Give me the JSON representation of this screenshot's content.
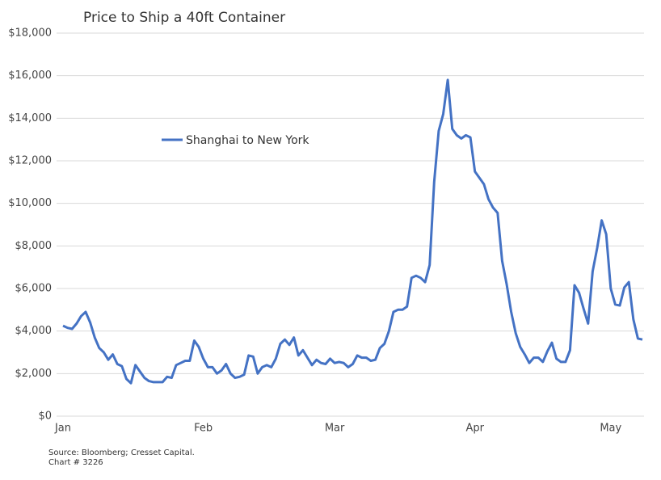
{
  "chart_data": {
    "type": "line",
    "title": "Price to Ship a 40ft Container",
    "source": "Source: Bloomberg; Cresset Capital.",
    "chart_number": "Chart # 3226",
    "categories": [
      "Jan",
      null,
      null,
      null,
      null,
      null,
      null,
      null,
      null,
      null,
      null,
      null,
      null,
      null,
      null,
      null,
      null,
      null,
      null,
      null,
      null,
      null,
      null,
      null,
      null,
      null,
      null,
      null,
      null,
      null,
      null,
      "Feb",
      null,
      null,
      null,
      null,
      null,
      null,
      null,
      null,
      null,
      null,
      null,
      null,
      null,
      null,
      null,
      null,
      null,
      null,
      null,
      null,
      null,
      null,
      null,
      null,
      null,
      null,
      null,
      null,
      "Mar",
      null,
      null,
      null,
      null,
      null,
      null,
      null,
      null,
      null,
      null,
      null,
      null,
      null,
      null,
      null,
      null,
      null,
      null,
      null,
      null,
      null,
      null,
      null,
      null,
      null,
      null,
      null,
      null,
      null,
      null,
      "Apr",
      null,
      null,
      null,
      null,
      null,
      null,
      null,
      null,
      null,
      null,
      null,
      null,
      null,
      null,
      null,
      null,
      null,
      null,
      null,
      null,
      null,
      null,
      null,
      null,
      null,
      null,
      null,
      null,
      null,
      "May",
      null,
      null,
      null,
      null,
      null,
      null,
      null
    ],
    "series": [
      {
        "name": "Shanghai to New York",
        "color": "#4472c4",
        "values": [
          4250,
          4150,
          4100,
          4350,
          4700,
          4900,
          4400,
          3700,
          3200,
          3000,
          2650,
          2900,
          2450,
          2350,
          1750,
          1550,
          2400,
          2100,
          1800,
          1650,
          1600,
          1600,
          1600,
          1850,
          1800,
          2400,
          2500,
          2600,
          2600,
          3550,
          3250,
          2700,
          2300,
          2300,
          2000,
          2150,
          2450,
          2000,
          1800,
          1850,
          1950,
          2850,
          2800,
          2000,
          2300,
          2400,
          2300,
          2700,
          3400,
          3600,
          3350,
          3700,
          2850,
          3100,
          2750,
          2400,
          2650,
          2500,
          2450,
          2700,
          2500,
          2550,
          2500,
          2300,
          2450,
          2850,
          2750,
          2750,
          2600,
          2650,
          3200,
          3400,
          4000,
          4900,
          5000,
          5000,
          5150,
          6500,
          6600,
          6500,
          6300,
          7100,
          11000,
          13400,
          14200,
          15800,
          13500,
          13200,
          13050,
          13200,
          13100,
          11500,
          11200,
          10900,
          10200,
          9800,
          9550,
          7300,
          6200,
          4900,
          3900,
          3250,
          2900,
          2500,
          2750,
          2750,
          2550,
          3050,
          3450,
          2700,
          2550,
          2550,
          3100,
          6150,
          5800,
          5050,
          4350,
          6800,
          7900,
          9200,
          8550,
          6000,
          5250,
          5200,
          6050,
          6300,
          4550,
          3650,
          3600
        ]
      }
    ],
    "ylim": [
      0,
      18000
    ],
    "yticks": [
      {
        "value": 0,
        "label": "$0"
      },
      {
        "value": 2000,
        "label": "$2,000"
      },
      {
        "value": 4000,
        "label": "$4,000"
      },
      {
        "value": 6000,
        "label": "$6,000"
      },
      {
        "value": 8000,
        "label": "$8,000"
      },
      {
        "value": 10000,
        "label": "$10,000"
      },
      {
        "value": 12000,
        "label": "$12,000"
      },
      {
        "value": 14000,
        "label": "$14,000"
      },
      {
        "value": 16000,
        "label": "$16,000"
      },
      {
        "value": 18000,
        "label": "$18,000"
      }
    ],
    "grid": true
  }
}
